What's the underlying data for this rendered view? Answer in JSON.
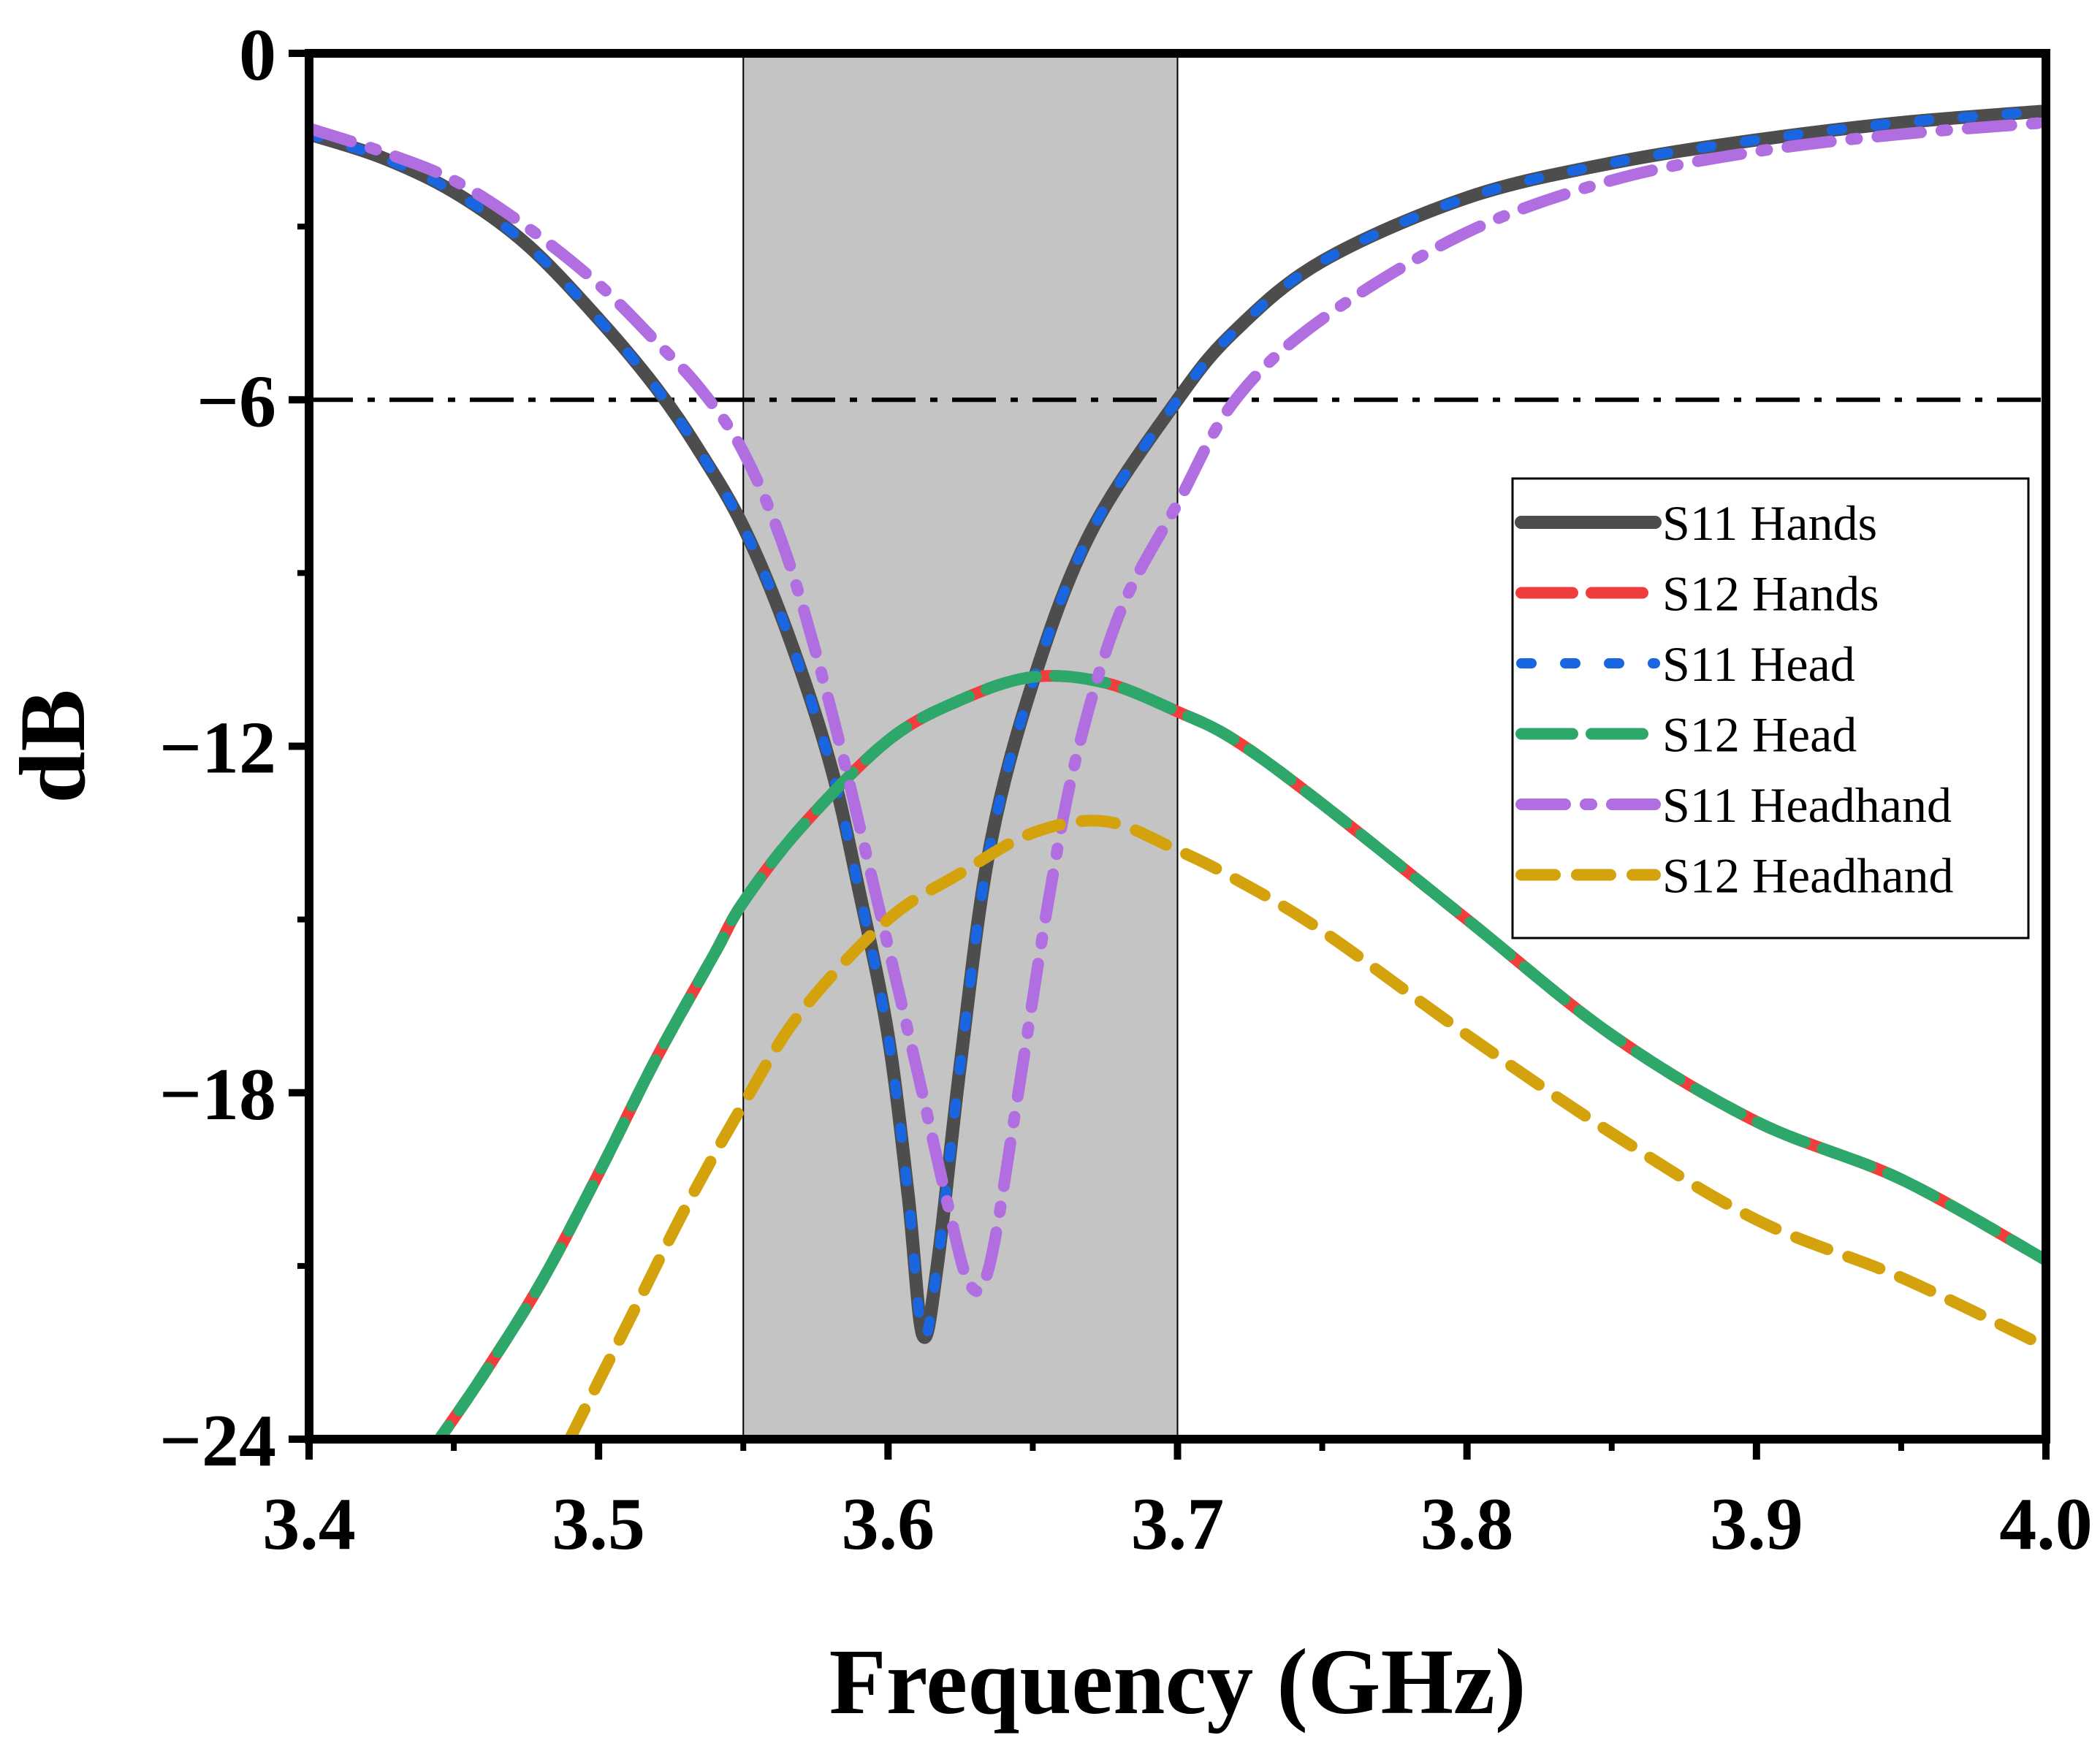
{
  "chart_data": {
    "type": "line",
    "title": "",
    "xlabel": "Frequency (GHz)",
    "ylabel": "dB",
    "xlim": [
      3.4,
      4.0
    ],
    "ylim": [
      -24,
      0
    ],
    "x_ticks": [
      3.4,
      3.5,
      3.6,
      3.7,
      3.8,
      3.9,
      4.0
    ],
    "x_tick_labels": [
      "3.4",
      "3.5",
      "3.6",
      "3.7",
      "3.8",
      "3.9",
      "4.0"
    ],
    "y_ticks": [
      -24,
      -18,
      -12,
      -6,
      0
    ],
    "y_tick_labels": [
      "−24",
      "−18",
      "−12",
      "−6",
      "0"
    ],
    "grid": false,
    "legend_position": "center-right",
    "shaded_band": {
      "x_start": 3.55,
      "x_end": 3.7,
      "color": "#c4c4c4"
    },
    "reference_line": {
      "y": -6,
      "style": "dash-dot",
      "color": "#000000"
    },
    "series": [
      {
        "name": "S11 Hands",
        "color": "#4d4d4d",
        "dash": "solid",
        "x": [
          3.4,
          3.425,
          3.45,
          3.475,
          3.5,
          3.52,
          3.535,
          3.55,
          3.565,
          3.58,
          3.59,
          3.6,
          3.607,
          3.612,
          3.617,
          3.625,
          3.635,
          3.65,
          3.67,
          3.7,
          3.72,
          3.75,
          3.8,
          3.85,
          3.9,
          3.95,
          4.0
        ],
        "values": [
          -1.4,
          -1.8,
          -2.4,
          -3.3,
          -4.6,
          -5.8,
          -6.9,
          -8.2,
          -10.0,
          -12.3,
          -14.5,
          -17.0,
          -19.8,
          -22.2,
          -21.0,
          -17.5,
          -13.8,
          -10.9,
          -8.3,
          -6.0,
          -4.8,
          -3.6,
          -2.5,
          -1.9,
          -1.5,
          -1.2,
          -1.0
        ]
      },
      {
        "name": "S12 Hands",
        "color": "#f23d3d",
        "dash": "long-dash",
        "x": [
          3.445,
          3.46,
          3.48,
          3.5,
          3.52,
          3.54,
          3.55,
          3.57,
          3.6,
          3.625,
          3.65,
          3.675,
          3.7,
          3.72,
          3.75,
          3.8,
          3.85,
          3.9,
          3.95,
          4.0
        ],
        "values": [
          -24.0,
          -22.9,
          -21.3,
          -19.4,
          -17.4,
          -15.6,
          -14.7,
          -13.4,
          -11.9,
          -11.2,
          -10.8,
          -10.9,
          -11.4,
          -11.9,
          -13.0,
          -15.0,
          -17.0,
          -18.5,
          -19.5,
          -20.9
        ]
      },
      {
        "name": "S11 Head",
        "color": "#1a66e0",
        "dash": "dot",
        "x": [
          3.4,
          3.425,
          3.45,
          3.475,
          3.5,
          3.52,
          3.535,
          3.55,
          3.565,
          3.58,
          3.59,
          3.6,
          3.607,
          3.612,
          3.617,
          3.625,
          3.635,
          3.65,
          3.67,
          3.7,
          3.72,
          3.75,
          3.8,
          3.85,
          3.9,
          3.95,
          4.0
        ],
        "values": [
          -1.4,
          -1.8,
          -2.4,
          -3.3,
          -4.6,
          -5.8,
          -6.9,
          -8.2,
          -10.0,
          -12.3,
          -14.5,
          -17.0,
          -19.8,
          -22.2,
          -21.0,
          -17.5,
          -13.8,
          -10.9,
          -8.3,
          -6.0,
          -4.8,
          -3.6,
          -2.5,
          -1.9,
          -1.5,
          -1.2,
          -1.0
        ]
      },
      {
        "name": "S12 Head",
        "color": "#2ea86a",
        "dash": "long-dash",
        "x": [
          3.445,
          3.46,
          3.48,
          3.5,
          3.52,
          3.54,
          3.55,
          3.57,
          3.6,
          3.625,
          3.65,
          3.675,
          3.7,
          3.72,
          3.75,
          3.8,
          3.85,
          3.9,
          3.95,
          4.0
        ],
        "values": [
          -24.0,
          -22.9,
          -21.3,
          -19.4,
          -17.4,
          -15.6,
          -14.7,
          -13.4,
          -11.9,
          -11.2,
          -10.8,
          -10.9,
          -11.4,
          -11.9,
          -13.0,
          -15.0,
          -17.0,
          -18.5,
          -19.5,
          -20.9
        ]
      },
      {
        "name": "S11 Headhand",
        "color": "#b06ee0",
        "dash": "dash-dot",
        "x": [
          3.4,
          3.425,
          3.45,
          3.475,
          3.5,
          3.52,
          3.535,
          3.55,
          3.565,
          3.58,
          3.595,
          3.61,
          3.62,
          3.628,
          3.635,
          3.645,
          3.655,
          3.665,
          3.68,
          3.7,
          3.72,
          3.75,
          3.8,
          3.85,
          3.9,
          3.95,
          4.0
        ],
        "values": [
          -1.3,
          -1.7,
          -2.2,
          -3.0,
          -4.0,
          -5.0,
          -5.8,
          -6.9,
          -8.7,
          -11.3,
          -14.4,
          -17.6,
          -19.8,
          -21.3,
          -21.0,
          -18.0,
          -14.8,
          -12.2,
          -9.7,
          -7.8,
          -6.0,
          -4.6,
          -3.1,
          -2.2,
          -1.7,
          -1.4,
          -1.2
        ]
      },
      {
        "name": "S12 Headhand",
        "color": "#d4a20d",
        "dash": "dash",
        "x": [
          3.49,
          3.51,
          3.53,
          3.55,
          3.57,
          3.6,
          3.625,
          3.65,
          3.675,
          3.7,
          3.72,
          3.75,
          3.8,
          3.85,
          3.9,
          3.95,
          4.0
        ],
        "values": [
          -24.0,
          -22.0,
          -20.0,
          -18.2,
          -16.6,
          -15.0,
          -14.2,
          -13.5,
          -13.3,
          -13.8,
          -14.3,
          -15.2,
          -17.0,
          -18.7,
          -20.2,
          -21.2,
          -22.4
        ]
      }
    ]
  }
}
